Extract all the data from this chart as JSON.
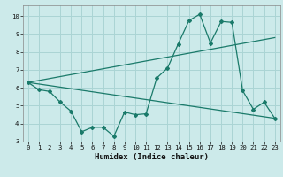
{
  "xlabel": "Humidex (Indice chaleur)",
  "bg_color": "#cceaea",
  "grid_color": "#aad4d4",
  "line_color": "#1a7a6a",
  "xlim": [
    -0.5,
    23.5
  ],
  "ylim": [
    3,
    10.6
  ],
  "xticks": [
    0,
    1,
    2,
    3,
    4,
    5,
    6,
    7,
    8,
    9,
    10,
    11,
    12,
    13,
    14,
    15,
    16,
    17,
    18,
    19,
    20,
    21,
    22,
    23
  ],
  "yticks": [
    3,
    4,
    5,
    6,
    7,
    8,
    9,
    10
  ],
  "line1_x": [
    0,
    1,
    2,
    3,
    4,
    5,
    6,
    7,
    8,
    9,
    10,
    11,
    12,
    13,
    14,
    15,
    16,
    17,
    18,
    19,
    20,
    21,
    22,
    23
  ],
  "line1_y": [
    6.3,
    5.9,
    5.8,
    5.2,
    4.7,
    3.55,
    3.8,
    3.8,
    3.3,
    4.65,
    4.5,
    4.55,
    6.55,
    7.1,
    8.45,
    9.75,
    10.1,
    8.5,
    9.7,
    9.65,
    5.85,
    4.8,
    5.2,
    4.3
  ],
  "line2_x": [
    0,
    23
  ],
  "line2_y": [
    6.3,
    4.3
  ],
  "line3_x": [
    0,
    23
  ],
  "line3_y": [
    6.3,
    8.8
  ]
}
